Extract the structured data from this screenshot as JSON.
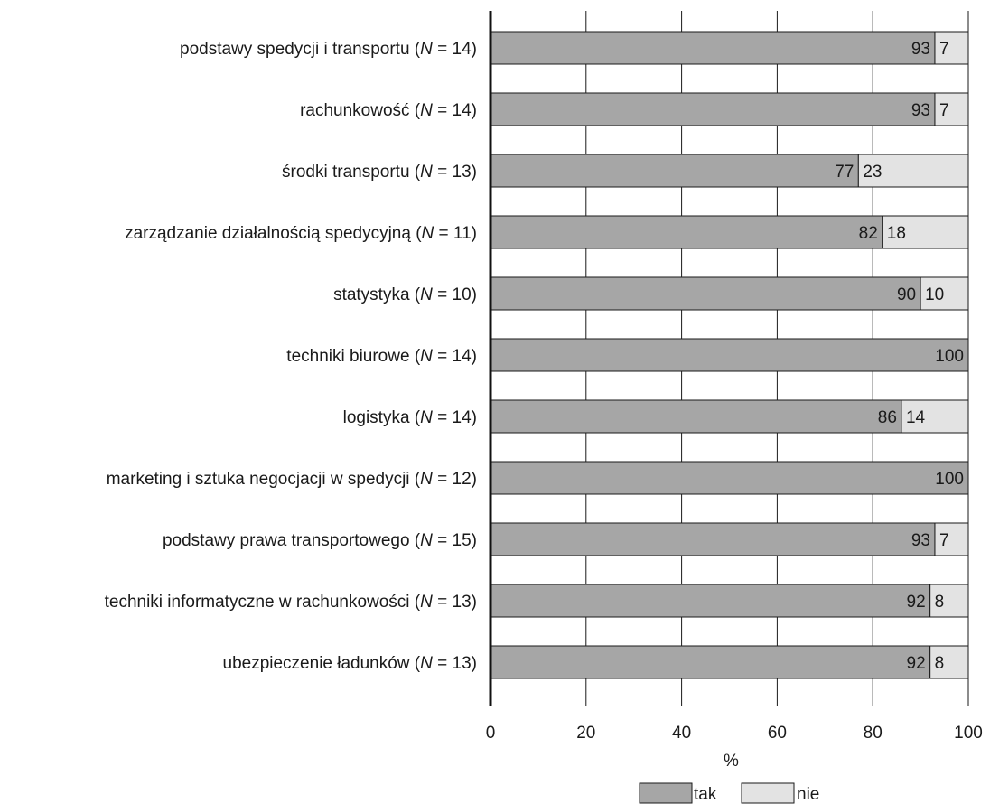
{
  "chart_data": {
    "type": "bar",
    "orientation": "horizontal",
    "stacked": true,
    "categories": [
      {
        "name": "podstawy spedycji i transportu",
        "n": "14"
      },
      {
        "name": "rachunkowość",
        "n": "14"
      },
      {
        "name": "środki transportu",
        "n": "13"
      },
      {
        "name": "zarządzanie działalnością spedycyjną",
        "n": "11"
      },
      {
        "name": "statystyka",
        "n": "10"
      },
      {
        "name": "techniki biurowe",
        "n": "14"
      },
      {
        "name": "logistyka",
        "n": "14"
      },
      {
        "name": "marketing i sztuka negocjacji w spedycji",
        "n": "12"
      },
      {
        "name": "podstawy prawa transportowego",
        "n": "15"
      },
      {
        "name": "techniki informatyczne w rachunkowości",
        "n": "13"
      },
      {
        "name": "ubezpieczenie ładunków",
        "n": "13"
      }
    ],
    "n_prefix": "N",
    "n_separator": " = ",
    "series": [
      {
        "name": "tak",
        "color": "#a6a6a6",
        "values": [
          93,
          93,
          77,
          82,
          90,
          100,
          86,
          100,
          93,
          92,
          92
        ]
      },
      {
        "name": "nie",
        "color": "#e3e3e3",
        "values": [
          7,
          7,
          23,
          18,
          10,
          0,
          14,
          0,
          7,
          8,
          8
        ]
      }
    ],
    "xlabel": "%",
    "xlim": [
      0,
      100
    ],
    "xticks": [
      0,
      20,
      40,
      60,
      80,
      100
    ],
    "grid": true,
    "legend": "bottom"
  }
}
